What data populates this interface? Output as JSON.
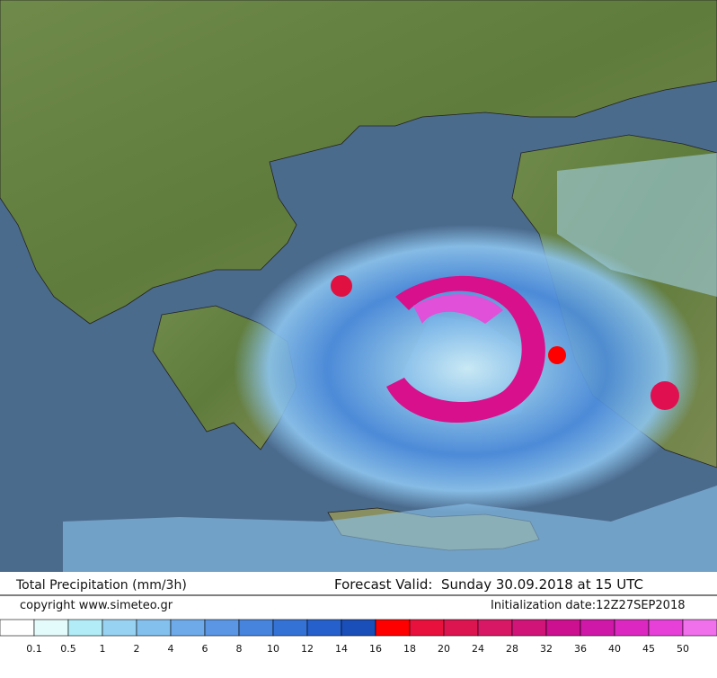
{
  "header": {
    "title": "Total Precipitation (mm/3h)",
    "forecast": "Forecast Valid:  Sunday 30.09.2018 at 15 UTC",
    "copyright": "copyright www.simeteo.gr",
    "init": "Initialization date:12Z27SEP2018"
  },
  "legend": {
    "labels": [
      0.1,
      0.5,
      1,
      2,
      4,
      6,
      8,
      10,
      12,
      14,
      16,
      18,
      20,
      24,
      28,
      32,
      36,
      40,
      45,
      50
    ],
    "colors": [
      "#ffffff",
      "#e4fbfb",
      "#b2ecf6",
      "#98d2f2",
      "#84c0ee",
      "#6eaaea",
      "#5a96e4",
      "#4684de",
      "#3472d6",
      "#2660cc",
      "#1a4eb8",
      "#ff0000",
      "#e8103c",
      "#dc1450",
      "#d81864",
      "#d01478",
      "#cc1090",
      "#d018a8",
      "#dc28c0",
      "#e640d8",
      "#f070ec"
    ]
  }
}
